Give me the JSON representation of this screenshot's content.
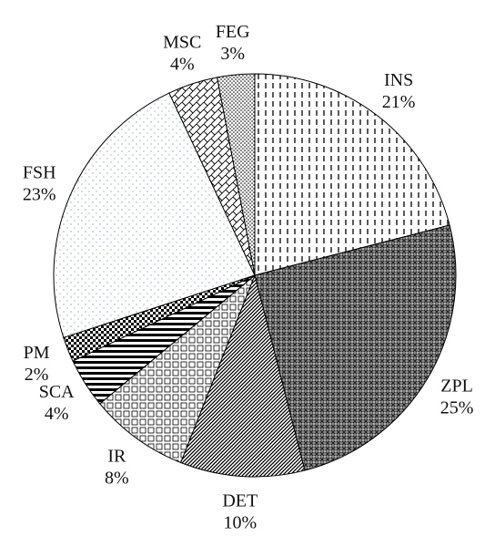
{
  "chart_data": {
    "type": "pie",
    "categories": [
      "INS",
      "ZPL",
      "DET",
      "IR",
      "SCA",
      "PM",
      "FSH",
      "MSC",
      "FEG"
    ],
    "values": [
      21,
      25,
      10,
      8,
      4,
      2,
      23,
      4,
      3
    ],
    "value_labels": [
      "21%",
      "25%",
      "10%",
      "8%",
      "4%",
      "2%",
      "23%",
      "4%",
      "3%"
    ]
  }
}
